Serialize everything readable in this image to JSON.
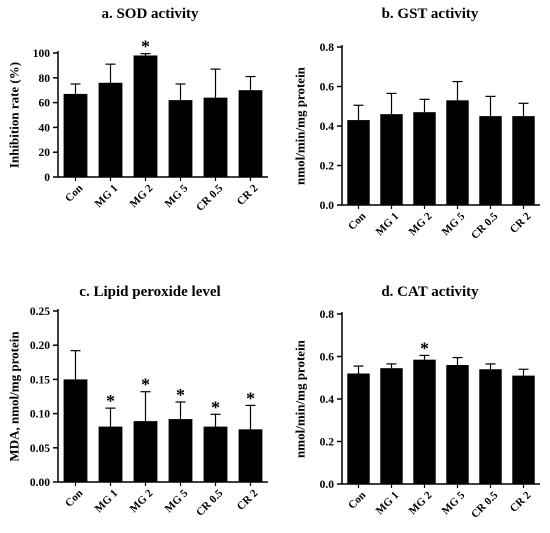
{
  "chart_data": [
    {
      "id": "a",
      "type": "bar",
      "title": "a. SOD activity",
      "ylabel": "Inhibition rate (%)",
      "categories": [
        "Con",
        "MG 1",
        "MG 2",
        "MG 5",
        "CR 0.5",
        "CR 2"
      ],
      "values": [
        67,
        76,
        98,
        62,
        64,
        70
      ],
      "errors": [
        8,
        15,
        1.5,
        13,
        23,
        11
      ],
      "significant": [
        false,
        false,
        true,
        false,
        false,
        false
      ],
      "ylim": [
        0,
        100
      ],
      "yticks": [
        "0",
        "20",
        "40",
        "60",
        "80",
        "100"
      ],
      "ytick_values": [
        0,
        20,
        40,
        60,
        80,
        100
      ],
      "marker": "*"
    },
    {
      "id": "b",
      "type": "bar",
      "title": "b. GST activity",
      "ylabel": "nmol/min/mg protein",
      "categories": [
        "Con",
        "MG 1",
        "MG 2",
        "MG 5",
        "CR 0.5",
        "CR 2"
      ],
      "values": [
        0.43,
        0.46,
        0.47,
        0.53,
        0.45,
        0.45
      ],
      "errors": [
        0.075,
        0.105,
        0.065,
        0.095,
        0.1,
        0.065
      ],
      "significant": [
        false,
        false,
        false,
        false,
        false,
        false
      ],
      "ylim": [
        0,
        0.8
      ],
      "yticks": [
        "0.0",
        "0.2",
        "0.4",
        "0.6",
        "0.8"
      ],
      "ytick_values": [
        0,
        0.2,
        0.4,
        0.6,
        0.8
      ],
      "marker": "*"
    },
    {
      "id": "c",
      "type": "bar",
      "title": "c. Lipid peroxide level",
      "ylabel": "MDA, nmol/mg protein",
      "categories": [
        "Con",
        "MG 1",
        "MG 2",
        "MG 5",
        "CR 0.5",
        "CR 2"
      ],
      "values": [
        0.15,
        0.081,
        0.089,
        0.092,
        0.081,
        0.077
      ],
      "errors": [
        0.042,
        0.027,
        0.043,
        0.025,
        0.018,
        0.035
      ],
      "significant": [
        false,
        true,
        true,
        true,
        true,
        true
      ],
      "ylim": [
        0,
        0.25
      ],
      "yticks": [
        "0.00",
        "0.05",
        "0.10",
        "0.15",
        "0.20",
        "0.25"
      ],
      "ytick_values": [
        0,
        0.05,
        0.1,
        0.15,
        0.2,
        0.25
      ],
      "marker": "*"
    },
    {
      "id": "d",
      "type": "bar",
      "title": "d. CAT activity",
      "ylabel": "nmol/min/mg protein",
      "categories": [
        "Con",
        "MG 1",
        "MG 2",
        "MG 5",
        "CR 0.5",
        "CR 2"
      ],
      "values": [
        0.52,
        0.545,
        0.585,
        0.56,
        0.54,
        0.51
      ],
      "errors": [
        0.035,
        0.02,
        0.02,
        0.035,
        0.025,
        0.03
      ],
      "significant": [
        false,
        false,
        true,
        false,
        false,
        false
      ],
      "ylim": [
        0,
        0.8
      ],
      "yticks": [
        "0.0",
        "0.2",
        "0.4",
        "0.6",
        "0.8"
      ],
      "ytick_values": [
        0,
        0.2,
        0.4,
        0.6,
        0.8
      ],
      "marker": "*"
    }
  ]
}
